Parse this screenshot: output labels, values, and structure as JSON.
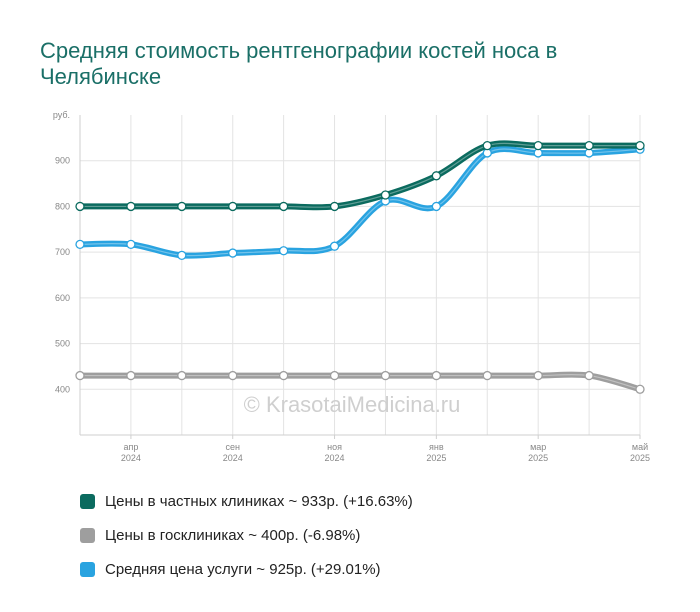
{
  "title": "Средняя стоимость рентгенографии костей носа в Челябинске",
  "watermark": "© KrasotaiMedicina.ru",
  "chart_data": {
    "type": "line",
    "unit_label": "руб.",
    "ylim": [
      300,
      1000
    ],
    "yticks": [
      400,
      500,
      600,
      700,
      800,
      900
    ],
    "x_count": 12,
    "x_ticks": [
      {
        "index": 1,
        "month": "апр",
        "year": "2024"
      },
      {
        "index": 3,
        "month": "сен",
        "year": "2024"
      },
      {
        "index": 5,
        "month": "ноя",
        "year": "2024"
      },
      {
        "index": 7,
        "month": "янв",
        "year": "2025"
      },
      {
        "index": 9,
        "month": "мар",
        "year": "2025"
      },
      {
        "index": 11,
        "month": "май",
        "year": "2025"
      }
    ],
    "grid": true,
    "legend_position": "bottom",
    "series": [
      {
        "name": "Цены в частных клиниках ~ 933р. (+16.63%)",
        "color": "#0b6b5f",
        "values": [
          800,
          800,
          800,
          800,
          800,
          800,
          825,
          867,
          933,
          933,
          933,
          933
        ]
      },
      {
        "name": "Цены в госклиниках ~ 400р. (-6.98%)",
        "color": "#9e9e9e",
        "values": [
          430,
          430,
          430,
          430,
          430,
          430,
          430,
          430,
          430,
          430,
          430,
          400
        ]
      },
      {
        "name": "Средняя цена услуги ~ 925р. (+29.01%)",
        "color": "#29a3e0",
        "values": [
          717,
          717,
          693,
          698,
          703,
          713,
          812,
          800,
          917,
          917,
          917,
          925
        ]
      }
    ]
  }
}
